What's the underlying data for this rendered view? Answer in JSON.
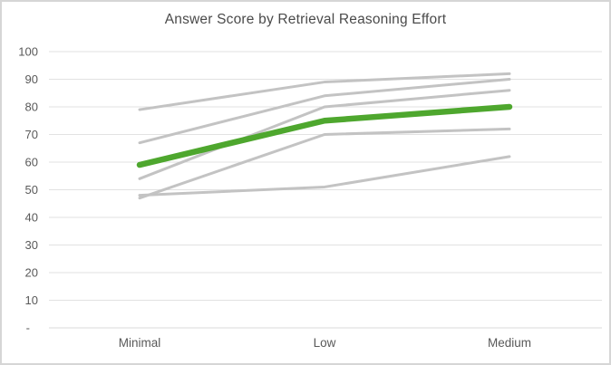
{
  "window": {
    "background_color": "#ffffff",
    "border_color": "#d6d6d6"
  },
  "chart_data": {
    "type": "line",
    "title": "Answer Score by Retrieval Reasoning Effort",
    "xlabel": "",
    "ylabel": "",
    "categories": [
      "Minimal",
      "Low",
      "Medium"
    ],
    "series": [
      {
        "role": "background-series",
        "values": [
          79,
          89,
          92
        ],
        "color": "#c3c3c3",
        "stroke_width": 3
      },
      {
        "role": "background-series",
        "values": [
          67,
          84,
          90
        ],
        "color": "#c3c3c3",
        "stroke_width": 3
      },
      {
        "role": "background-series",
        "values": [
          54,
          80,
          86
        ],
        "color": "#c3c3c3",
        "stroke_width": 3
      },
      {
        "role": "background-series",
        "values": [
          47,
          70,
          72
        ],
        "color": "#c3c3c3",
        "stroke_width": 3
      },
      {
        "role": "background-series",
        "values": [
          48,
          51,
          62
        ],
        "color": "#c3c3c3",
        "stroke_width": 3
      },
      {
        "role": "highlight-series",
        "values": [
          59,
          75,
          80
        ],
        "color": "#4ea72e",
        "stroke_width": 6.5
      }
    ],
    "ylim": [
      0,
      100
    ],
    "ytick_step": 10,
    "ytick_labels_bottom_to_top": [
      "-",
      "10",
      "20",
      "30",
      "40",
      "50",
      "60",
      "70",
      "80",
      "90",
      "100"
    ],
    "grid": "horizontal",
    "legend": "none",
    "colors": {
      "gridline": "#e2e2e2",
      "axis_line": "#d9d9d9",
      "tick_label": "#595959",
      "title": "#4a4a4a",
      "highlight_green": "#4ea72e",
      "background_gray": "#c3c3c3"
    }
  }
}
